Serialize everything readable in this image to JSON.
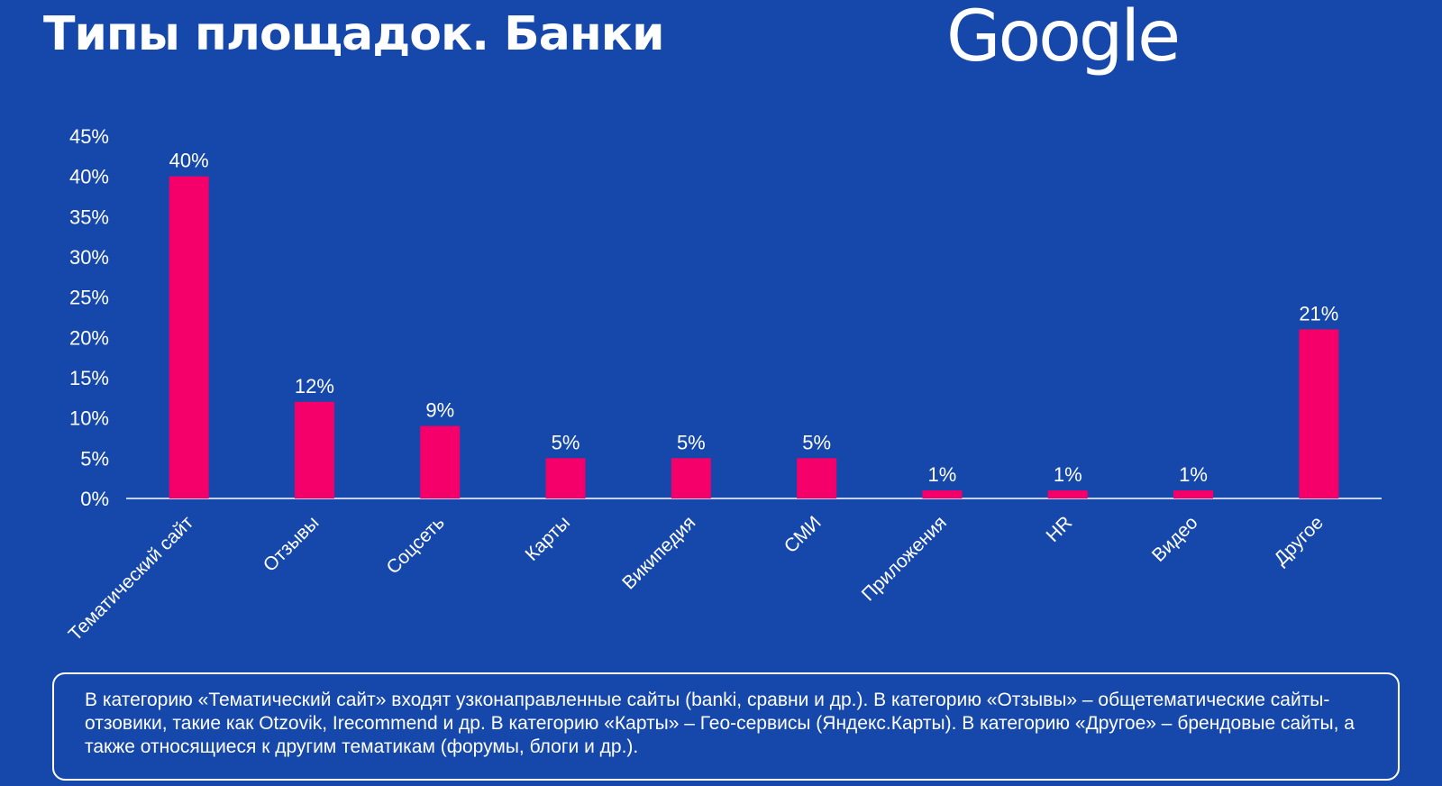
{
  "header": {
    "title": "Типы площадок. Банки",
    "logo_text": "Google"
  },
  "chart_data": {
    "type": "bar",
    "title": "",
    "xlabel": "",
    "ylabel": "",
    "categories": [
      "Тематический сайт",
      "Отзывы",
      "Соцсеть",
      "Карты",
      "Википедия",
      "СМИ",
      "Приложения",
      "HR",
      "Видео",
      "Другое"
    ],
    "values": [
      40,
      12,
      9,
      5,
      5,
      5,
      1,
      1,
      1,
      21
    ],
    "value_labels": [
      "40%",
      "12%",
      "9%",
      "5%",
      "5%",
      "5%",
      "1%",
      "1%",
      "1%",
      "21%"
    ],
    "ylim": [
      0,
      45
    ],
    "yticks": [
      0,
      5,
      10,
      15,
      20,
      25,
      30,
      35,
      40,
      45
    ],
    "ytick_labels": [
      "0%",
      "5%",
      "10%",
      "15%",
      "20%",
      "25%",
      "30%",
      "35%",
      "40%",
      "45%"
    ],
    "grid": false,
    "legend": "none",
    "bar_color": "#f5006a",
    "axis_color": "#ffffff"
  },
  "note": {
    "text": "В категорию «Тематический сайт» входят узконаправленные сайты (banki, сравни и др.). В категорию «Отзывы» – общетематические сайты-отзовики, такие как Otzovik, Irecommend и др. В категорию «Карты» – Гео-сервисы (Яндекс.Карты). В категорию «Другое» – брендовые сайты, а также относящиеся к другим тематикам (форумы, блоги и др.)."
  },
  "theme": {
    "background": "#1648ab",
    "text": "#ffffff"
  }
}
